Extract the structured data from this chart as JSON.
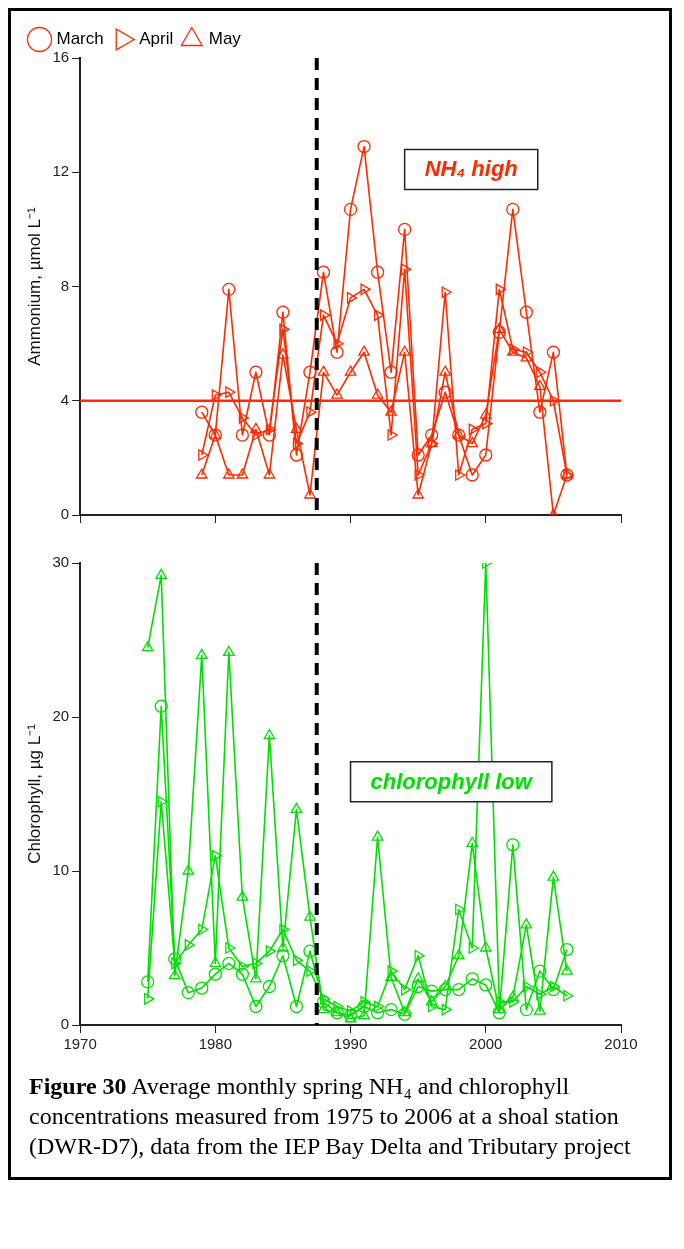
{
  "chart_data": [
    {
      "type": "line",
      "ylabel": "Ammonium, µmol L⁻¹",
      "x": [
        1979,
        1980,
        1981,
        1982,
        1983,
        1984,
        1985,
        1986,
        1987,
        1988,
        1989,
        1990,
        1991,
        1992,
        1993,
        1994,
        1995,
        1996,
        1997,
        1998,
        1999,
        2000,
        2001,
        2002,
        2003,
        2004,
        2005,
        2006
      ],
      "series": [
        {
          "name": "March",
          "color": "#ff2a00",
          "marker": "circle",
          "values": [
            3.6,
            2.8,
            7.9,
            2.8,
            5.0,
            2.8,
            7.1,
            2.1,
            5.0,
            8.5,
            5.7,
            10.7,
            12.9,
            8.5,
            5.0,
            10.0,
            2.1,
            2.8,
            4.3,
            2.8,
            1.4,
            2.1,
            6.4,
            10.7,
            7.1,
            3.6,
            5.7,
            1.4
          ]
        },
        {
          "name": "April",
          "color": "#ff2a00",
          "marker": "triangle-right",
          "values": [
            2.1,
            4.2,
            4.3,
            3.4,
            2.8,
            3.0,
            6.5,
            2.5,
            3.6,
            7.0,
            6.0,
            7.6,
            7.9,
            7.0,
            2.8,
            8.6,
            1.4,
            2.5,
            7.8,
            1.4,
            3.0,
            3.2,
            7.9,
            5.8,
            5.7,
            5.0,
            4.0,
            1.4
          ]
        },
        {
          "name": "May",
          "color": "#ff2a00",
          "marker": "triangle",
          "values": [
            1.4,
            2.8,
            1.4,
            1.4,
            3.0,
            1.4,
            5.6,
            3.0,
            0.7,
            5.0,
            4.2,
            5.0,
            5.7,
            4.2,
            3.6,
            5.7,
            0.7,
            2.5,
            5.0,
            2.8,
            2.5,
            3.5,
            6.5,
            5.7,
            5.5,
            4.5,
            0.0,
            1.4
          ]
        }
      ],
      "xlim": [
        1970,
        2010
      ],
      "xticks": [
        1970,
        1980,
        1990,
        2000,
        2010
      ],
      "ylim": [
        0,
        16
      ],
      "yticks": [
        0,
        4,
        8,
        12,
        16
      ],
      "tick_labels": "y",
      "grid": false,
      "legend": "top left",
      "line_style": "solid",
      "ref_lines": [
        {
          "axis": "y",
          "value": 4,
          "color": "#ff2a00",
          "line_style": "solid"
        },
        {
          "axis": "x",
          "value": 1987.5,
          "color": "#000000",
          "line_style": "dashed"
        }
      ],
      "annotations": [
        "NH₄ high"
      ]
    },
    {
      "type": "line",
      "ylabel": "Chlorophyll, µg L⁻¹",
      "x": [
        1975,
        1976,
        1977,
        1978,
        1979,
        1980,
        1981,
        1982,
        1983,
        1984,
        1985,
        1986,
        1987,
        1988,
        1989,
        1990,
        1991,
        1992,
        1993,
        1994,
        1995,
        1996,
        1997,
        1998,
        1999,
        2000,
        2001,
        2002,
        2003,
        2004,
        2005,
        2006
      ],
      "series": [
        {
          "color": "#00e000",
          "marker": "circle",
          "values": [
            2.8,
            20.7,
            4.3,
            2.1,
            2.4,
            3.3,
            4.0,
            3.3,
            1.2,
            2.5,
            4.5,
            1.2,
            4.8,
            1.5,
            0.8,
            0.6,
            1.2,
            0.8,
            1.0,
            0.7,
            2.5,
            2.2,
            2.3,
            2.3,
            3.0,
            2.6,
            0.8,
            11.7,
            1.0,
            3.5,
            2.3,
            4.9
          ]
        },
        {
          "color": "#00e000",
          "marker": "triangle-right",
          "values": [
            1.7,
            14.5,
            4.0,
            5.2,
            6.2,
            11.0,
            5.0,
            3.8,
            4.0,
            4.8,
            6.2,
            4.2,
            3.5,
            1.7,
            1.2,
            0.9,
            1.5,
            1.2,
            3.5,
            2.3,
            4.5,
            1.2,
            1.0,
            7.5,
            5.0,
            30.0,
            1.5,
            1.5,
            2.5,
            2.0,
            2.5,
            1.9
          ]
        },
        {
          "color": "#00e000",
          "marker": "triangle",
          "values": [
            24.5,
            29.2,
            3.2,
            10.0,
            24.0,
            4.0,
            24.2,
            8.3,
            3.0,
            18.8,
            5.0,
            14.0,
            7.0,
            1.0,
            0.8,
            0.4,
            0.6,
            12.2,
            3.1,
            0.8,
            3.0,
            1.5,
            2.5,
            4.5,
            11.8,
            5.0,
            1.0,
            1.8,
            6.5,
            0.9,
            9.6,
            3.5
          ]
        }
      ],
      "xlim": [
        1970,
        2010
      ],
      "xticks": [
        1970,
        1980,
        1990,
        2000,
        2010
      ],
      "ylim": [
        0,
        30
      ],
      "yticks": [
        0,
        10,
        20,
        30
      ],
      "grid": false,
      "line_style": "solid",
      "ref_lines": [
        {
          "axis": "x",
          "value": 1987.5,
          "color": "#000000",
          "line_style": "dashed"
        }
      ],
      "annotations": [
        "chlorophyll low",
        "Figure 30",
        "Average monthly spring NH₄ and chlorophyll concentrations measured from 1975 to 2006 at a shoal station (DWR-D7), data  from the IEP Bay Delta and Tributary project"
      ]
    }
  ]
}
